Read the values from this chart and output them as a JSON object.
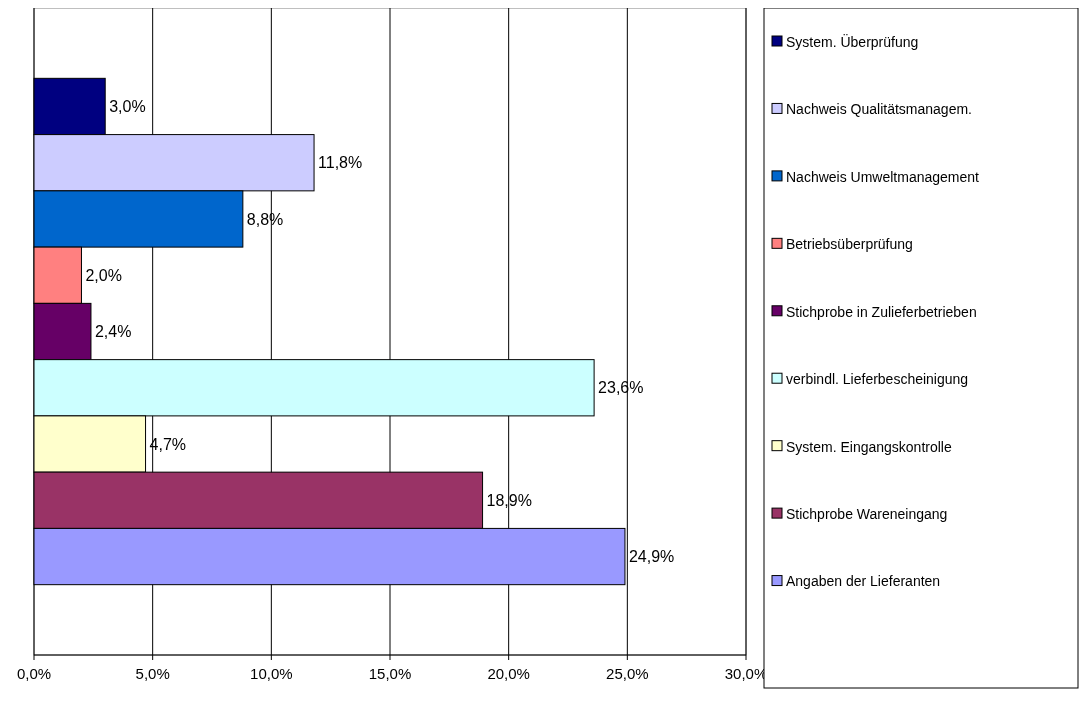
{
  "chart_data": {
    "type": "bar",
    "orientation": "horizontal",
    "categories": [
      null
    ],
    "series": [
      {
        "name": "System. Überprüfung",
        "color": "#000080",
        "values": [
          3.0
        ],
        "value_labels": [
          "3,0%"
        ]
      },
      {
        "name": "Nachweis Qualitätsmanagem.",
        "color": "#ccccff",
        "values": [
          11.8
        ],
        "value_labels": [
          "11,8%"
        ]
      },
      {
        "name": "Nachweis Umweltmanagement",
        "color": "#0066cc",
        "values": [
          8.8
        ],
        "value_labels": [
          "8,8%"
        ]
      },
      {
        "name": "Betriebsüberprüfung",
        "color": "#ff8080",
        "values": [
          2.0
        ],
        "value_labels": [
          "2,0%"
        ]
      },
      {
        "name": "Stichprobe in Zulieferbetrieben",
        "color": "#660066",
        "values": [
          2.4
        ],
        "value_labels": [
          "2,4%"
        ]
      },
      {
        "name": "verbindl. Lieferbescheinigung",
        "color": "#ccffff",
        "values": [
          23.6
        ],
        "value_labels": [
          "23,6%"
        ]
      },
      {
        "name": "System. Eingangskontrolle",
        "color": "#ffffcc",
        "values": [
          4.7
        ],
        "value_labels": [
          "4,7%"
        ]
      },
      {
        "name": "Stichprobe Wareneingang",
        "color": "#993366",
        "values": [
          18.9
        ],
        "value_labels": [
          "18,9%"
        ]
      },
      {
        "name": "Angaben der Lieferanten",
        "color": "#9999ff",
        "values": [
          24.9
        ],
        "value_labels": [
          "24,9%"
        ]
      }
    ],
    "xlim": [
      0,
      30
    ],
    "xticks": [
      {
        "value": 0,
        "label": "0,0%"
      },
      {
        "value": 5,
        "label": "5,0%"
      },
      {
        "value": 10,
        "label": "10,0%"
      },
      {
        "value": 15,
        "label": "15,0%"
      },
      {
        "value": 20,
        "label": "20,0%"
      },
      {
        "value": 25,
        "label": "25,0%"
      },
      {
        "value": 30,
        "label": "30,0%"
      }
    ],
    "grid": "x",
    "legend": "right",
    "tick_labels": "x"
  }
}
